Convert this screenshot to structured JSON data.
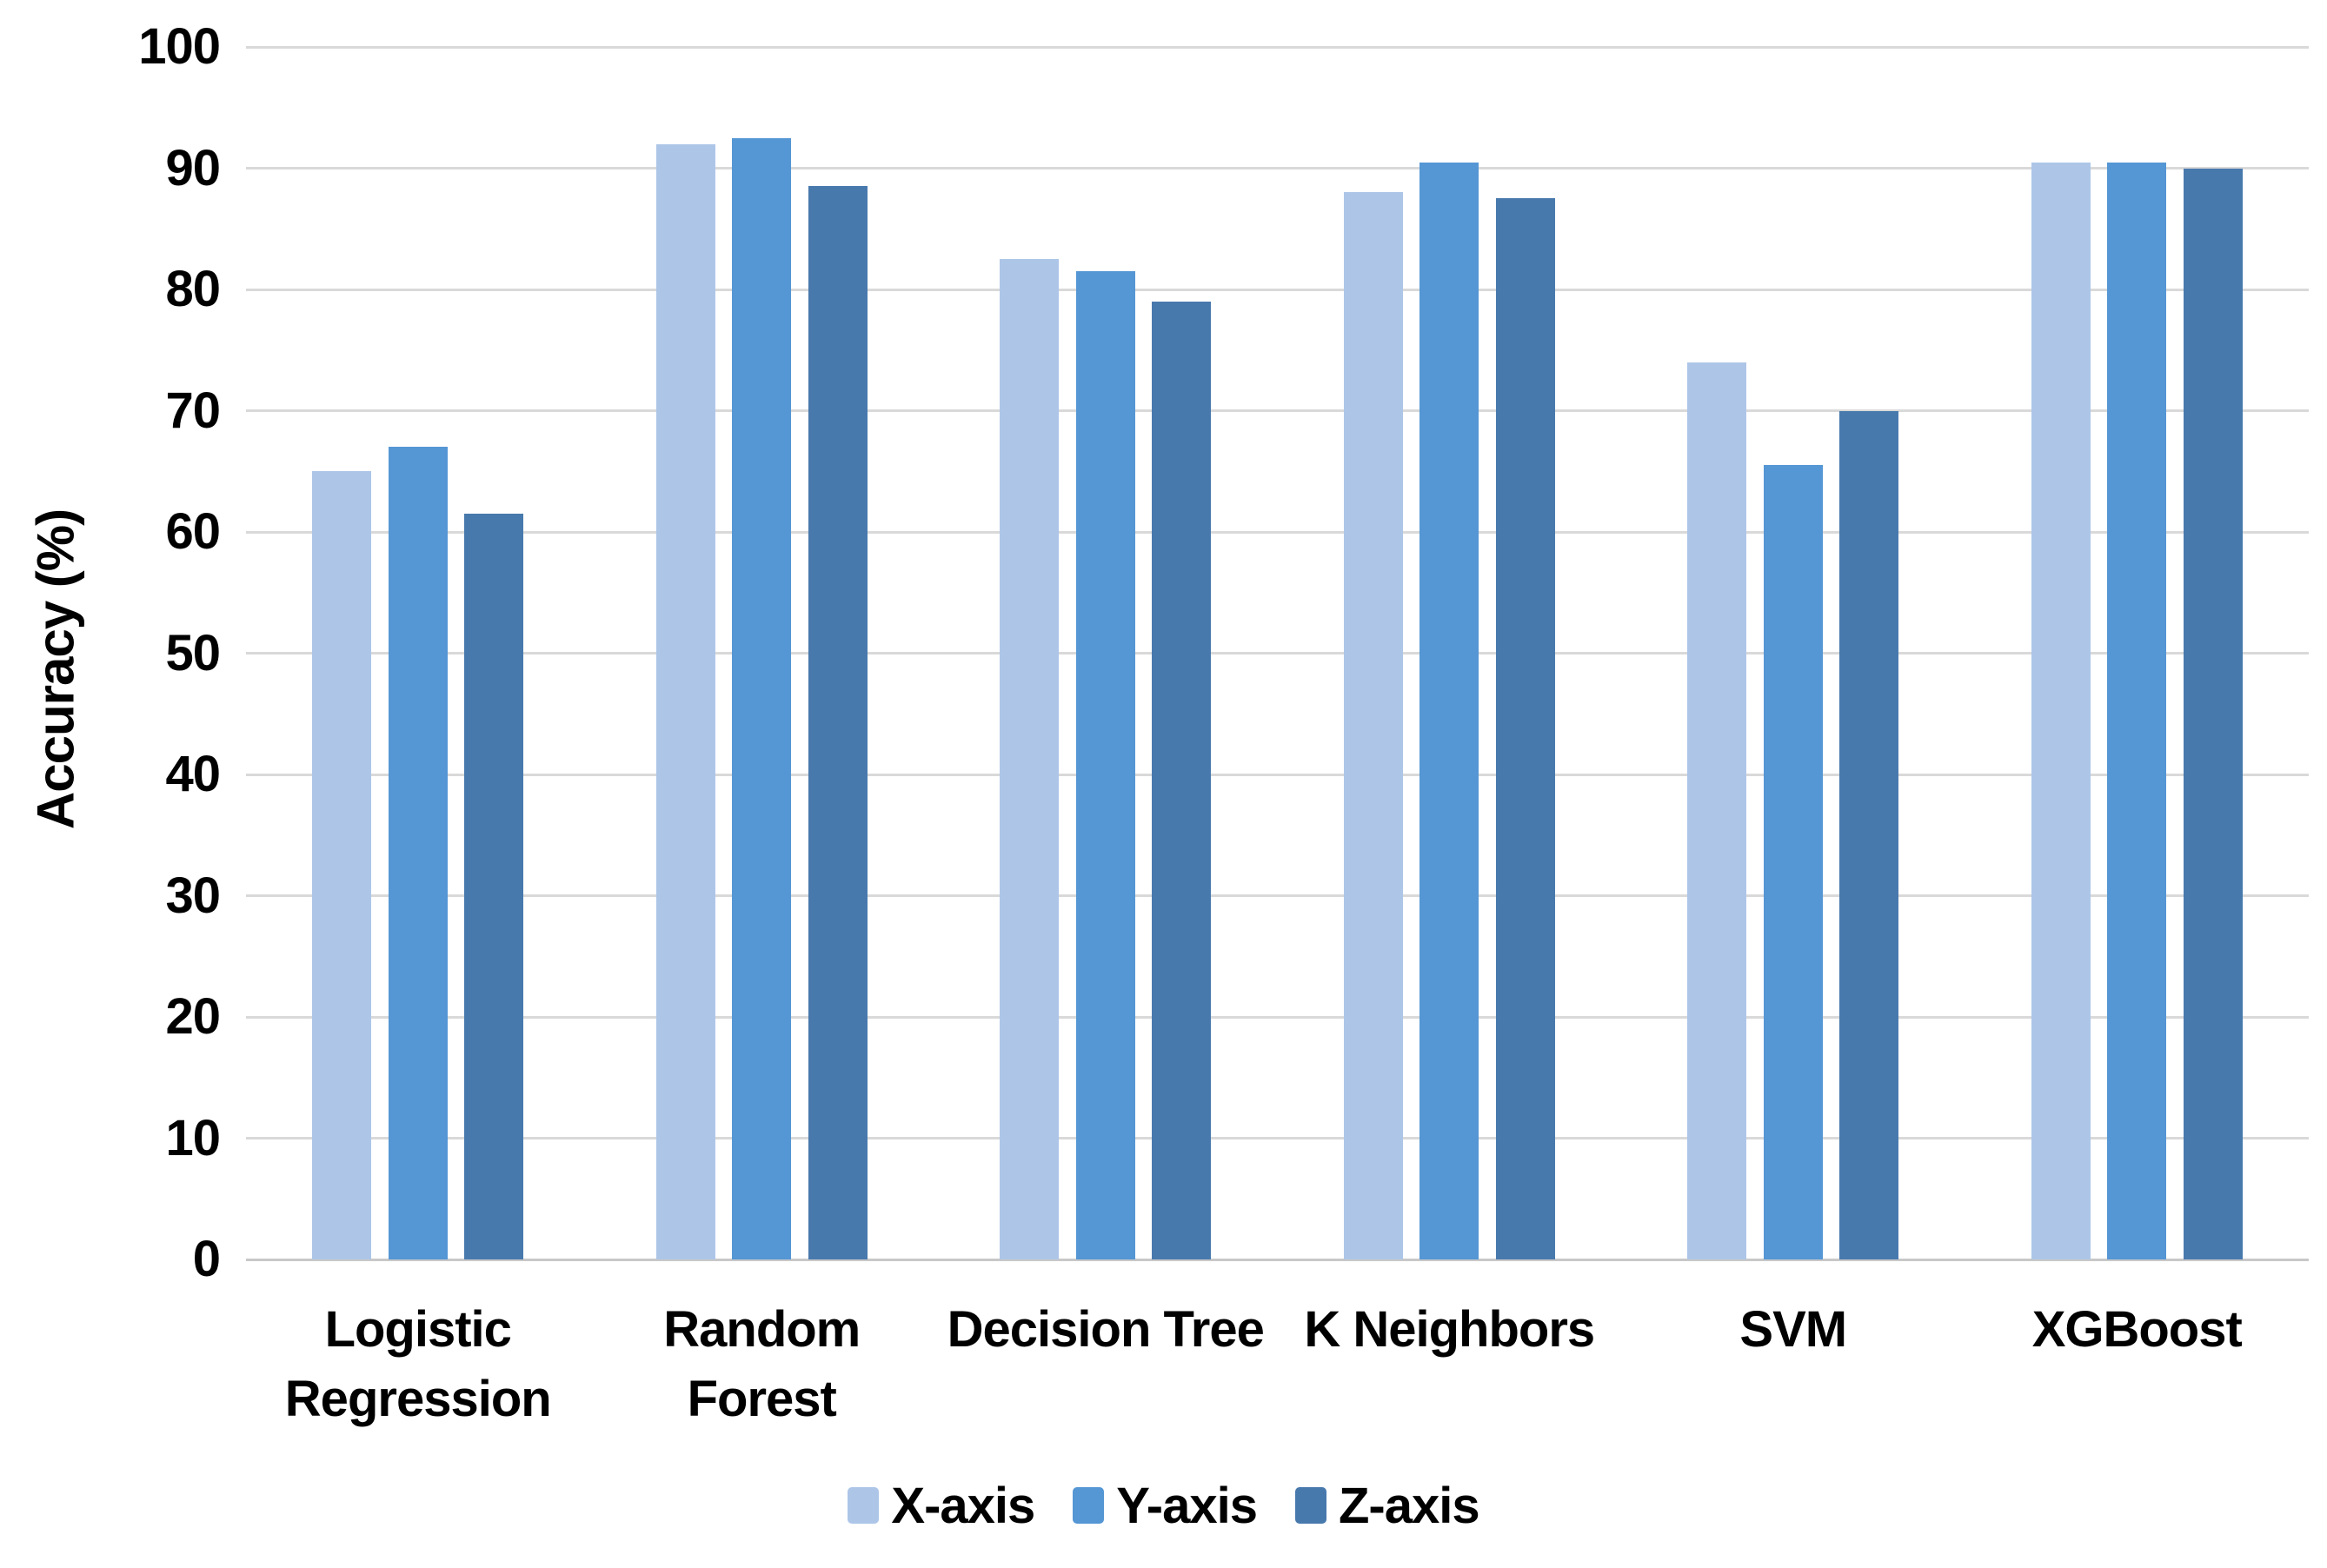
{
  "page": {
    "background": "#FFFFFF"
  },
  "chart_data": {
    "type": "bar",
    "title": "",
    "ylabel": "Accuracy (%)",
    "xlabel": "",
    "ylim": [
      0,
      100
    ],
    "yticks": [
      100,
      90,
      80,
      70,
      60,
      50,
      40,
      30,
      20,
      10,
      0
    ],
    "grid": true,
    "legend_position": "bottom-center",
    "categories": [
      "Logistic Regression",
      "Random Forest",
      "Decision Tree",
      "K Neighbors",
      "SVM",
      "XGBoost"
    ],
    "category_lines": [
      [
        "Logistic",
        "Regression"
      ],
      [
        "Random",
        "Forest"
      ],
      [
        "Decision Tree"
      ],
      [
        "K Neighbors"
      ],
      [
        "SVM"
      ],
      [
        "XGBoost"
      ]
    ],
    "series": [
      {
        "name": "X-axis",
        "color": "#ADC6E8",
        "values": [
          65,
          92,
          82.5,
          88,
          74,
          90.5
        ]
      },
      {
        "name": "Y-axis",
        "color": "#5596D4",
        "values": [
          67,
          92.5,
          81.5,
          90.5,
          65.5,
          90.5
        ]
      },
      {
        "name": "Z-axis",
        "color": "#4879AD",
        "values": [
          61.5,
          88.5,
          79,
          87.5,
          70,
          90
        ]
      }
    ],
    "colors": {
      "gridline": "#D9D9D9",
      "baseline": "#C8C8C8",
      "text": "#000000"
    }
  }
}
